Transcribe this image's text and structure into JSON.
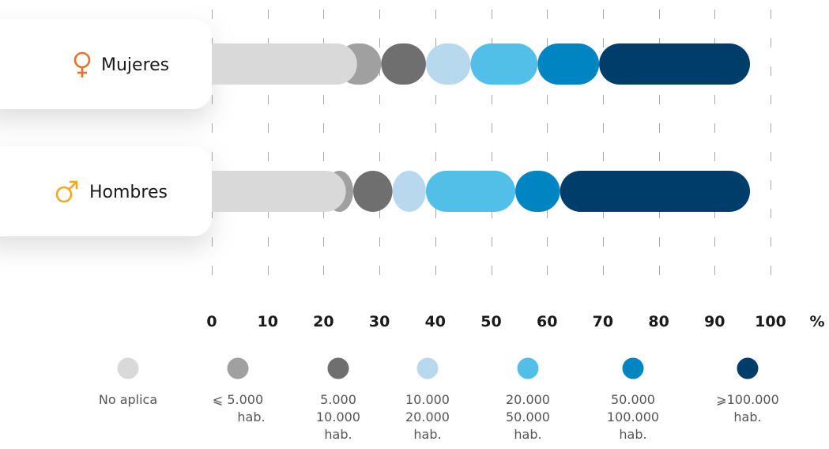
{
  "chart_data": {
    "type": "bar",
    "orientation": "horizontal",
    "stacked": true,
    "categories": [
      "Mujeres",
      "Hombres"
    ],
    "category_icons": [
      "female-icon",
      "male-icon"
    ],
    "category_icon_colors": [
      "#e8702a",
      "#f0a81c"
    ],
    "series": [
      {
        "name": [
          "No aplica"
        ],
        "color": "#d9d9d9",
        "values": [
          26,
          24
        ]
      },
      {
        "name": [
          "⩽ 5.000",
          "hab."
        ],
        "color": "#a0a0a0",
        "values": [
          8,
          5
        ]
      },
      {
        "name": [
          "5.000",
          "10.000",
          "hab."
        ],
        "color": "#6f6f6f",
        "values": [
          8,
          7
        ]
      },
      {
        "name": [
          "10.000",
          "20.000",
          "hab."
        ],
        "color": "#b8d8ee",
        "values": [
          8,
          6
        ]
      },
      {
        "name": [
          "20.000",
          "50.000",
          "hab."
        ],
        "color": "#52bfe8",
        "values": [
          12,
          16
        ]
      },
      {
        "name": [
          "50.000",
          "100.000",
          "hab."
        ],
        "color": "#0085c3",
        "values": [
          11,
          8
        ]
      },
      {
        "name": [
          "⩾100.000",
          "hab."
        ],
        "color": "#003d6b",
        "values": [
          27,
          34
        ]
      }
    ],
    "x_ticks": [
      "0",
      "10",
      "20",
      "30",
      "40",
      "50",
      "60",
      "70",
      "80",
      "90",
      "100"
    ],
    "x_unit": "%",
    "xlim": [
      0,
      100
    ],
    "grid": "vertical-dashed",
    "legend_position": "bottom"
  }
}
